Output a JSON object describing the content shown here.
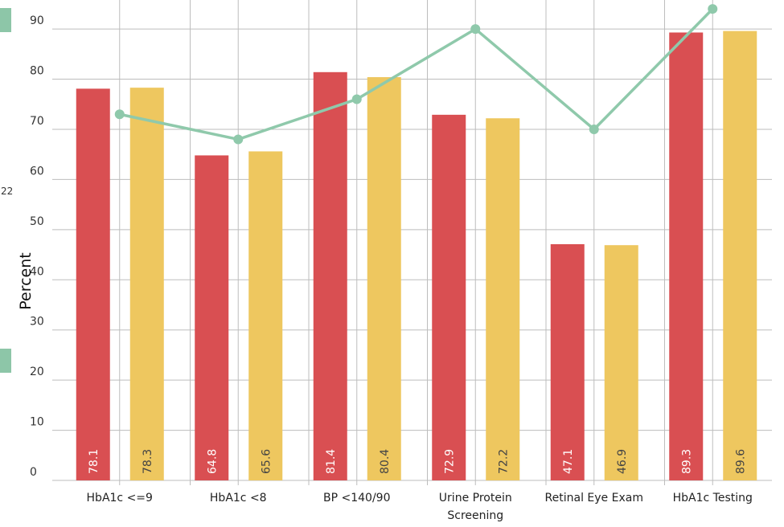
{
  "chart_data": {
    "type": "bar",
    "categories": [
      "HbA1c <=9",
      "HbA1c <8",
      "BP <140/90",
      "Urine Protein Screening",
      "Retinal Eye Exam",
      "HbA1c Testing"
    ],
    "category_lines": [
      [
        "HbA1c <=9"
      ],
      [
        "HbA1c <8"
      ],
      [
        "BP <140/90"
      ],
      [
        "Urine Protein",
        "Screening"
      ],
      [
        "Retinal Eye Exam"
      ],
      [
        "HbA1c Testing"
      ]
    ],
    "series": [
      {
        "type": "bar",
        "color": "#d94f52",
        "label_color": "#ffffff",
        "values": [
          78.1,
          64.8,
          81.4,
          72.9,
          47.1,
          89.3
        ]
      },
      {
        "type": "bar",
        "color": "#eec75f",
        "label_color": "#444444",
        "values": [
          78.3,
          65.6,
          80.4,
          72.2,
          46.9,
          89.6
        ]
      },
      {
        "type": "line",
        "color": "#8fc9ab",
        "values": [
          73,
          68,
          76,
          90,
          70,
          94
        ]
      }
    ],
    "ylabel": "Percent",
    "ylim": [
      0,
      94.5
    ],
    "yticks": [
      0,
      10,
      20,
      30,
      40,
      50,
      60,
      70,
      80,
      90
    ],
    "grid": true,
    "edge_fragment": "22"
  }
}
